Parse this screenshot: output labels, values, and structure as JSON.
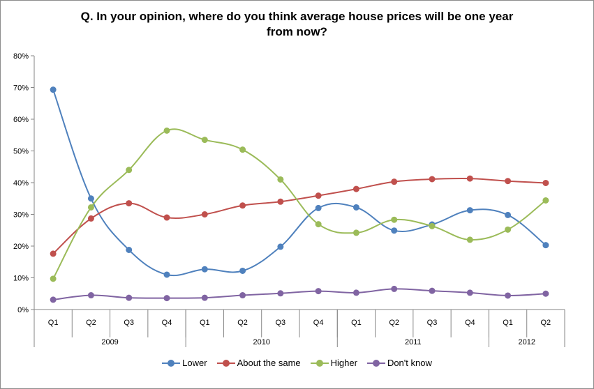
{
  "chart_data": {
    "type": "line",
    "title_lines": [
      "Q. In your opinion, where do you think average house prices will be one year",
      "from now?"
    ],
    "quarters": [
      "Q1",
      "Q2",
      "Q3",
      "Q4",
      "Q1",
      "Q2",
      "Q3",
      "Q4",
      "Q1",
      "Q2",
      "Q3",
      "Q4",
      "Q1",
      "Q2"
    ],
    "years": [
      {
        "label": "2009",
        "quarters": 4
      },
      {
        "label": "2010",
        "quarters": 4
      },
      {
        "label": "2011",
        "quarters": 4
      },
      {
        "label": "2012",
        "quarters": 2
      }
    ],
    "y_ticks": [
      "0%",
      "10%",
      "20%",
      "30%",
      "40%",
      "50%",
      "60%",
      "70%",
      "80%"
    ],
    "ylim": [
      0,
      80
    ],
    "smooth": true,
    "legend_position": "bottom",
    "series": [
      {
        "name": "Lower",
        "color": "#4f81bd",
        "values": [
          69.3,
          35,
          18.8,
          11,
          12.7,
          12.2,
          19.8,
          32,
          32.2,
          24.9,
          26.8,
          31.3,
          29.8,
          20.3
        ]
      },
      {
        "name": "About the same",
        "color": "#c0504d",
        "values": [
          17.6,
          28.7,
          33.5,
          29,
          30,
          32.8,
          34,
          35.9,
          38,
          40.3,
          41.1,
          41.3,
          40.5,
          39.9
        ]
      },
      {
        "name": "Higher",
        "color": "#9bbb59",
        "values": [
          9.7,
          32.2,
          44,
          56.4,
          53.5,
          50.4,
          41,
          26.9,
          24.2,
          28.3,
          26.3,
          22,
          25.2,
          34.4
        ]
      },
      {
        "name": "Don't know",
        "color": "#8064a2",
        "values": [
          3.1,
          4.5,
          3.7,
          3.6,
          3.7,
          4.5,
          5.1,
          5.8,
          5.3,
          6.5,
          5.9,
          5.3,
          4.4,
          5
        ]
      }
    ]
  }
}
